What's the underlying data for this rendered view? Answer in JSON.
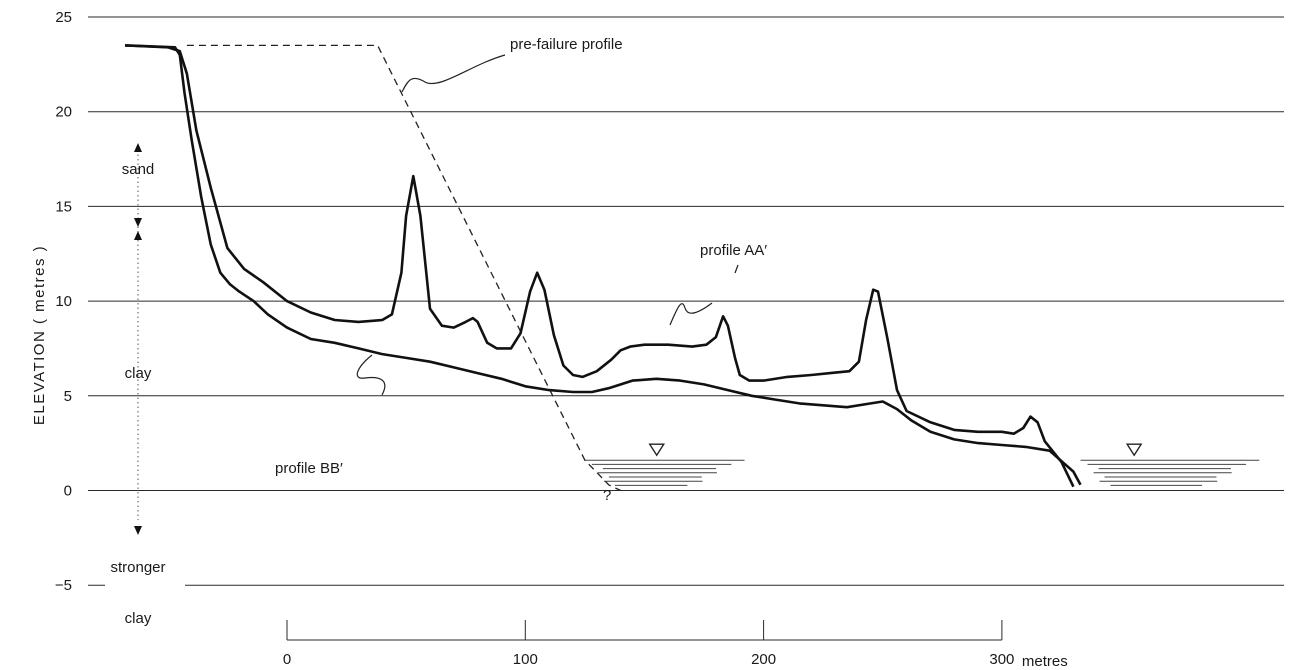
{
  "chart_data": {
    "type": "line",
    "title": "",
    "ylabel": "ELEVATION ( metres )",
    "xlabel": "",
    "ylim": [
      -7,
      26
    ],
    "xlim": [
      -70,
      410
    ],
    "y_ticks": [
      "25",
      "20",
      "15",
      "10",
      "5",
      "0",
      "−5"
    ],
    "y_tick_values": [
      25,
      20,
      15,
      10,
      5,
      0,
      -5
    ],
    "x_scale_ticks": [
      "0",
      "100",
      "200",
      "300"
    ],
    "x_scale_tick_values": [
      0,
      100,
      200,
      300
    ],
    "x_scale_unit": "metres",
    "grid": true,
    "strata": {
      "sand": "sand",
      "clay": "clay",
      "stronger_clay_1": "stronger",
      "stronger_clay_2": "clay"
    },
    "annotations": {
      "pre_failure": "pre-failure profile",
      "profile_aa": "profile AA′",
      "profile_bb": "profile BB′",
      "unknown_toe": "?"
    },
    "water_levels": [
      {
        "x_start": 125,
        "x_end": 192,
        "y": 1.6
      },
      {
        "x_start": 333,
        "x_end": 408,
        "y": 1.6
      }
    ],
    "series": [
      {
        "name": "profile AA′",
        "x": [
          -68,
          -50,
          -45,
          -42,
          -38,
          -32,
          -25,
          -18,
          -10,
          0,
          10,
          20,
          30,
          40,
          44,
          48,
          50,
          53,
          56,
          60,
          65,
          70,
          75,
          78,
          80,
          84,
          88,
          94,
          98,
          102,
          105,
          108,
          112,
          116,
          120,
          124,
          130,
          136,
          140,
          144,
          150,
          160,
          170,
          176,
          180,
          183,
          185,
          188,
          190,
          194,
          200,
          210,
          220,
          228,
          236,
          240,
          243,
          246,
          248,
          252,
          256,
          260,
          270,
          280,
          290,
          300,
          305,
          309,
          312,
          315,
          318,
          325,
          330
        ],
        "y": [
          23.5,
          23.4,
          23.2,
          22.0,
          19.0,
          16.0,
          12.8,
          11.7,
          11.0,
          10.0,
          9.4,
          9.0,
          8.9,
          9.0,
          9.3,
          11.5,
          14.5,
          16.6,
          14.5,
          9.6,
          8.7,
          8.6,
          8.9,
          9.1,
          8.9,
          7.8,
          7.5,
          7.5,
          8.3,
          10.5,
          11.5,
          10.6,
          8.2,
          6.6,
          6.1,
          6.0,
          6.3,
          6.9,
          7.4,
          7.6,
          7.7,
          7.7,
          7.6,
          7.7,
          8.1,
          9.2,
          8.7,
          7.0,
          6.1,
          5.8,
          5.8,
          6.0,
          6.1,
          6.2,
          6.3,
          6.8,
          9.0,
          10.6,
          10.5,
          8.0,
          5.3,
          4.2,
          3.6,
          3.2,
          3.1,
          3.1,
          3.0,
          3.3,
          3.9,
          3.6,
          2.6,
          1.5,
          0.2
        ]
      },
      {
        "name": "profile BB′",
        "x": [
          -68,
          -47,
          -45,
          -43,
          -40,
          -36,
          -32,
          -28,
          -24,
          -20,
          -14,
          -8,
          0,
          10,
          20,
          30,
          40,
          50,
          60,
          70,
          80,
          90,
          100,
          110,
          120,
          128,
          135,
          145,
          155,
          165,
          175,
          185,
          195,
          205,
          215,
          225,
          235,
          245,
          250,
          256,
          262,
          270,
          280,
          290,
          300,
          310,
          320,
          330,
          333
        ],
        "y": [
          23.5,
          23.4,
          23.0,
          21.0,
          18.5,
          15.5,
          13.0,
          11.5,
          10.9,
          10.5,
          10.0,
          9.3,
          8.6,
          8.0,
          7.8,
          7.5,
          7.2,
          7.0,
          6.8,
          6.5,
          6.2,
          5.9,
          5.5,
          5.3,
          5.2,
          5.2,
          5.4,
          5.8,
          5.9,
          5.8,
          5.6,
          5.3,
          5.0,
          4.8,
          4.6,
          4.5,
          4.4,
          4.6,
          4.7,
          4.3,
          3.7,
          3.1,
          2.7,
          2.5,
          2.4,
          2.3,
          2.1,
          1.0,
          0.3
        ]
      },
      {
        "name": "pre-failure profile",
        "x": [
          -42,
          38,
          125,
          135,
          140
        ],
        "y": [
          23.5,
          23.5,
          1.6,
          0.3,
          0.0
        ]
      }
    ]
  }
}
